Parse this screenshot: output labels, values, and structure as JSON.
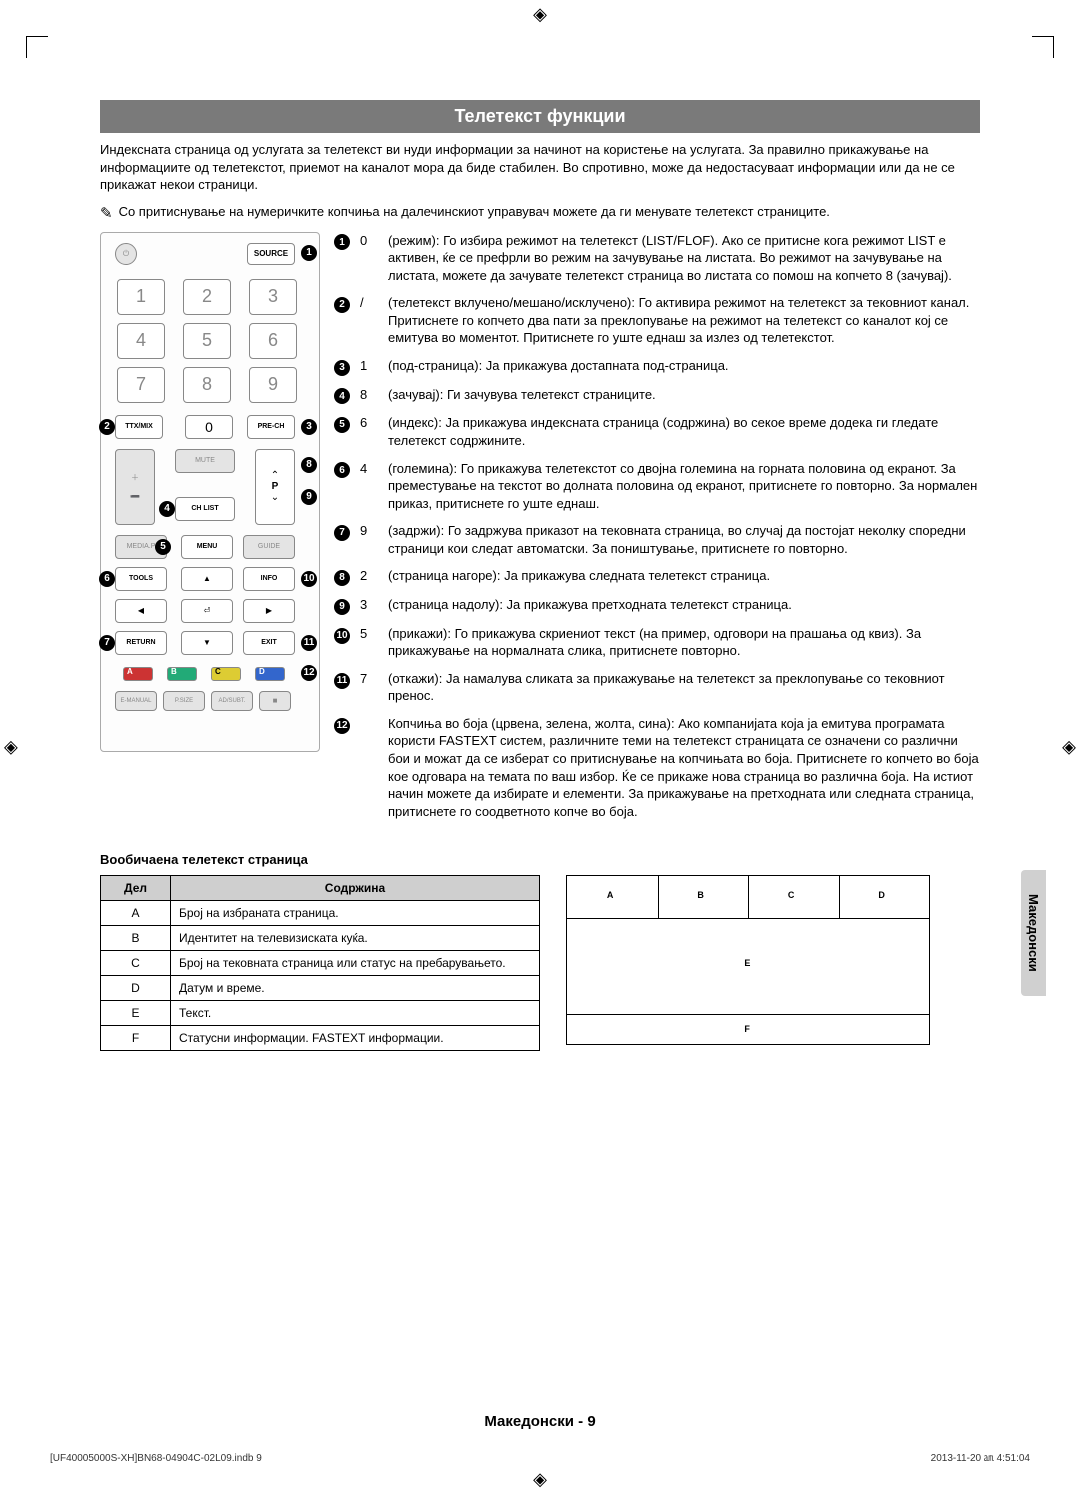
{
  "title": "Телетекст функции",
  "intro": "Индексната страница од услугата за телетекст ви нуди информации за начинот на користење на услугата. За правилно прикажување на информациите од телетекстот, приемот на каналот мора да биде стабилен. Во спротивно, може да недостасуваат информации или да не се прикажат некои страници.",
  "note_icon": "✎",
  "note": "Со притиснување на нумеричките копчиња на далечинскиот управувач можете да ги менувате телетекст страниците.",
  "remote": {
    "source": "SOURCE",
    "nums": [
      "1",
      "2",
      "3",
      "4",
      "5",
      "6",
      "7",
      "8",
      "9",
      "0"
    ],
    "ttx": "TTX/MIX",
    "prech": "PRE-CH",
    "mute": "MUTE",
    "ch": "CH LIST",
    "media": "MEDIA.P",
    "menu": "MENU",
    "guide": "GUIDE",
    "tools": "TOOLS",
    "info": "INFO",
    "return": "RETURN",
    "exit": "EXIT",
    "emanual": "E-MANUAL",
    "psize": "P.SIZE",
    "adsubt": "AD/SUBT.",
    "p": "P",
    "colors": {
      "a": "A",
      "b": "B",
      "c": "C",
      "d": "D"
    },
    "color_hex": {
      "a": "#c33",
      "b": "#2a7",
      "c": "#dc3",
      "d": "#36c"
    }
  },
  "descriptions": [
    {
      "n": "1",
      "num": "0",
      "text": "(режим): Го избира режимот на телетекст (LIST/FLOF). Ако се притисне кога режимот LIST е активен, ќе се префрли во режим на зачувување на листата. Во режимот на зачувување на листата, можете да зачувате телетекст страница во листата со помош на копчето 8 (зачувај)."
    },
    {
      "n": "2",
      "num": "/",
      "text": "(телетекст вклучено/мешано/исклучено): Го активира режимот на телетекст за тековниот канал. Притиснете го копчето два пати за преклопување на режимот на телетекст со каналот кој се емитува во моментот. Притиснете го уште еднаш за излез од телетекстот."
    },
    {
      "n": "3",
      "num": "1",
      "text": "(под-страница): Ја прикажува достапната под-страница."
    },
    {
      "n": "4",
      "num": "8",
      "text": "(зачувај): Ги зачувува телетекст страниците."
    },
    {
      "n": "5",
      "num": "6",
      "text": "(индекс): Ја прикажува индексната страница (содржина) во секое време додека ги гледате телетекст содржините."
    },
    {
      "n": "6",
      "num": "4",
      "text": "(големина): Го прикажува телетекстот со двојна големина на горната половина од екранот. За преместување на текстот во долната половина од екранот, притиснете го повторно. За нормален приказ, притиснете го уште еднаш."
    },
    {
      "n": "7",
      "num": "9",
      "text": "(задржи): Го задржува приказот на тековната страница, во случај да постојат неколку споредни страници кои следат автоматски. За поништување, притиснете го повторно."
    },
    {
      "n": "8",
      "num": "2",
      "text": "(страница нагоре): Ја прикажува следната телетекст страница."
    },
    {
      "n": "9",
      "num": "3",
      "text": "(страница надолу): Ја прикажува претходната телетекст страница."
    },
    {
      "n": "10",
      "num": "5",
      "text": "(прикажи): Го прикажува скриениот текст (на пример, одговори на прашања од квиз). За прикажување на нормалната слика, притиснете повторно."
    },
    {
      "n": "11",
      "num": "7",
      "text": "(откажи): Ја намалува сликата за прикажување на телетекст за преклопување со тековниот пренос."
    },
    {
      "n": "12",
      "num": "",
      "text": "Копчиња во боја (црвена, зелена, жолта, сина): Ако компанијата која ја емитува програмата користи FASTEXT систем, различните теми на телетекст страницата се означени со различни бои и можат да се изберат со притиснување на копчињата во боја. Притиснете го копчето во боја кое одговара на темата по ваш избор. Ќе се прикаже нова страница во различна боја. На истиот начин можете да избирате и елементи. За прикажување на претходната или следната страница, притиснете го соодветното копче во боја."
    }
  ],
  "section_heading": "Вообичаена телетекст страница",
  "table": {
    "headers": [
      "Дел",
      "Содржина"
    ],
    "rows": [
      [
        "A",
        "Број на избраната страница."
      ],
      [
        "B",
        "Идентитет на телевизиската куќа."
      ],
      [
        "C",
        "Број на тековната страница или статус на пребарувањето."
      ],
      [
        "D",
        "Датум и време."
      ],
      [
        "E",
        "Текст."
      ],
      [
        "F",
        "Статусни информации. FASTEXT информации."
      ]
    ]
  },
  "layout_labels": {
    "a": "A",
    "b": "B",
    "c": "C",
    "d": "D",
    "e": "E",
    "f": "F"
  },
  "lang_tab": "Македонски",
  "page_number": "Македонски - 9",
  "footer_left": "[UF40005000S-XH]BN68-04904C-02L09.indb   9",
  "footer_right": "2013-11-20   ㏂ 4:51:04"
}
